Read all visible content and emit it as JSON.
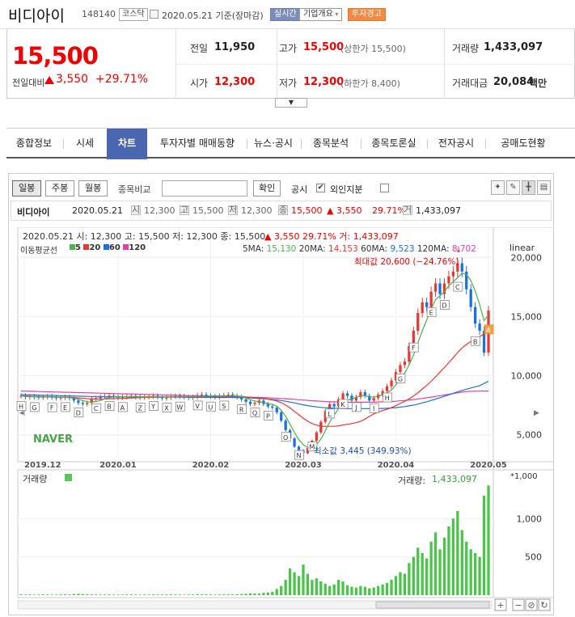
{
  "header": {
    "stock_name": "비디아이",
    "stock_code": "148140",
    "market": "코스닥",
    "date_text": "2020.05.21 기준(장마감)",
    "realtime": "실시간",
    "company_info": "기업개요",
    "alert": "투자경고"
  },
  "price": {
    "current": "15,500",
    "change_label": "전일대비",
    "change": "3,550",
    "change_pct": "+29.71%",
    "prev_close_label": "전일",
    "prev_close": "11,950",
    "high_label": "고가",
    "high": "15,500",
    "upper_limit": "(상한가 15,500)",
    "volume_label": "거래량",
    "volume": "1,433,097",
    "open_label": "시가",
    "open": "12,300",
    "low_label": "저가",
    "low": "12,300",
    "lower_limit": "(하한가 8,400)",
    "amount_label": "거래대금",
    "amount": "20,084",
    "amount_unit": "백만"
  },
  "collapse_icon": "chevron-down-icon",
  "tabs": [
    "종합정보",
    "시세",
    "차트",
    "투자자별 매매동향",
    "뉴스·공시",
    "종목분석",
    "종목토론실",
    "전자공시",
    "공매도현황"
  ],
  "active_tab": 2,
  "toolbar": {
    "periods": [
      "일봉",
      "주봉",
      "월봉"
    ],
    "compare_label": "종목비교",
    "compare_placeholder": "",
    "confirm": "확인",
    "disclosure": "공시",
    "disclosure_checked": "✔",
    "foreign": "외인지분"
  },
  "infobar": {
    "name": "비디아이",
    "date": "2020.05.21",
    "open_lbl": "시",
    "open": "12,300",
    "high_lbl": "고",
    "high": "15,500",
    "low_lbl": "저",
    "low": "12,300",
    "close_lbl": "종",
    "close": "15,500",
    "change": "▲ 3,550",
    "pct": "29.71%",
    "vol_lbl": "거",
    "volume": "1,433,097"
  },
  "overlay": {
    "ohlc_line": "2020.05.21 시: 12,300 고: 15,500 저: 12,300 종: 15,500",
    "chg": "▲  3,550  29.71%  거: 1,433,097",
    "ma_title": "이동평균선",
    "ma_periods": [
      "5",
      "20",
      "60",
      "120"
    ],
    "ma_colors": [
      "#4caf50",
      "#e53935",
      "#1e6fd9",
      "#e040a0"
    ],
    "ma5_lbl": "5MA:",
    "ma5": "15,130",
    "ma20_lbl": "20MA:",
    "ma20": "14,153",
    "ma60_lbl": "60MA:",
    "ma60": "9,523",
    "ma120_lbl": "120MA:",
    "ma120": "8,702",
    "linear": "linear",
    "max_text": "최대값 20,600 (−24.76%)",
    "min_text": "최소값 3,445 (349.93%)",
    "brand": "NAVER",
    "vol_title": "거래량",
    "vol_value_label": "거래량:",
    "vol_value": "1,433,097",
    "vol_scale": "*1,000"
  },
  "chart_data": {
    "type": "candlestick",
    "price_axis": {
      "ticks": [
        "5,000",
        "10,000",
        "15,000",
        "20,000"
      ],
      "range": [
        3000,
        22000
      ]
    },
    "volume_axis": {
      "ticks": [
        "500",
        "1,000"
      ],
      "range": [
        0,
        1500
      ],
      "unit": "*1,000"
    },
    "x_ticks": [
      "2019.12",
      "2020.01",
      "2020.02",
      "2020.03",
      "2020.04",
      "2020.05"
    ],
    "closes": [
      8300,
      8200,
      8250,
      8200,
      8150,
      8200,
      8250,
      8180,
      8100,
      8150,
      8200,
      8100,
      7900,
      7700,
      7600,
      7700,
      8000,
      8100,
      8200,
      8250,
      8300,
      8200,
      8150,
      8200,
      8250,
      8300,
      8200,
      8150,
      8200,
      8250,
      8300,
      8200,
      8100,
      8150,
      8250,
      8300,
      8250,
      8200,
      8150,
      8200,
      8350,
      8400,
      8300,
      8250,
      8200,
      8300,
      8350,
      8400,
      8300,
      8200,
      8000,
      7800,
      7600,
      7700,
      7900,
      7600,
      7400,
      7300,
      6900,
      6200,
      5400,
      4700,
      4000,
      3700,
      3445,
      3900,
      4500,
      5200,
      6100,
      7000,
      7600,
      7400,
      8000,
      8500,
      8300,
      7900,
      8200,
      8600,
      8300,
      7900,
      8100,
      8400,
      8700,
      9100,
      9600,
      10300,
      10900,
      11200,
      12500,
      13800,
      15300,
      16200,
      15800,
      17100,
      17800,
      16900,
      17800,
      18400,
      18800,
      19500,
      18800,
      17300,
      15800,
      14400,
      13800,
      11950,
      15500
    ],
    "volumes": [
      10,
      8,
      9,
      7,
      8,
      10,
      9,
      8,
      7,
      9,
      11,
      9,
      15,
      18,
      14,
      12,
      10,
      9,
      8,
      9,
      10,
      8,
      7,
      8,
      9,
      10,
      8,
      7,
      8,
      9,
      10,
      9,
      8,
      9,
      10,
      9,
      8,
      7,
      8,
      9,
      12,
      11,
      10,
      9,
      8,
      9,
      10,
      11,
      10,
      12,
      15,
      18,
      25,
      22,
      20,
      30,
      35,
      45,
      80,
      120,
      200,
      350,
      300,
      250,
      400,
      280,
      200,
      220,
      180,
      150,
      120,
      140,
      200,
      180,
      130,
      110,
      100,
      120,
      110,
      90,
      100,
      120,
      140,
      160,
      200,
      250,
      300,
      280,
      420,
      500,
      620,
      550,
      480,
      700,
      820,
      600,
      750,
      900,
      1000,
      1100,
      850,
      700,
      600,
      550,
      500,
      1300,
      1433
    ],
    "ma5": [
      8300,
      8240,
      8230,
      8220,
      8200,
      8200,
      8200,
      8190,
      8180,
      8170,
      8160,
      8140,
      8090,
      8000,
      7900,
      7800,
      7780,
      7820,
      7900,
      8050,
      8150,
      8210,
      8220,
      8220,
      8220,
      8230,
      8230,
      8220,
      8210,
      8220,
      8220,
      8220,
      8210,
      8200,
      8200,
      8210,
      8230,
      8240,
      8230,
      8220,
      8230,
      8260,
      8280,
      8300,
      8300,
      8290,
      8280,
      8300,
      8310,
      8290,
      8230,
      8110,
      7970,
      7860,
      7800,
      7720,
      7640,
      7580,
      7420,
      7080,
      6560,
      5900,
      5200,
      4600,
      4150,
      3950,
      3900,
      4160,
      4650,
      5340,
      6080,
      6660,
      7220,
      7700,
      7960,
      8020,
      8180,
      8300,
      8320,
      8200,
      8180,
      8260,
      8400,
      8560,
      8780,
      9220,
      9740,
      10220,
      10900,
      11740,
      12800,
      13800,
      14720,
      15640,
      16440,
      16760,
      17080,
      17600,
      17940,
      18280,
      18660,
      18560,
      18040,
      17160,
      16020,
      14650,
      15130
    ],
    "ma20": [
      8300,
      8280,
      8260,
      8250,
      8240,
      8230,
      8220,
      8210,
      8200,
      8190,
      8180,
      8170,
      8150,
      8120,
      8090,
      8060,
      8040,
      8030,
      8020,
      8030,
      8050,
      8060,
      8070,
      8080,
      8090,
      8110,
      8130,
      8150,
      8160,
      8170,
      8180,
      8190,
      8200,
      8210,
      8210,
      8210,
      8210,
      8210,
      8210,
      8210,
      8220,
      8230,
      8240,
      8250,
      8250,
      8250,
      8250,
      8260,
      8270,
      8260,
      8240,
      8210,
      8170,
      8140,
      8120,
      8070,
      8010,
      7950,
      7860,
      7720,
      7520,
      7270,
      6980,
      6700,
      6400,
      6160,
      5950,
      5820,
      5740,
      5710,
      5720,
      5720,
      5760,
      5830,
      5890,
      5950,
      6030,
      6150,
      6330,
      6560,
      6770,
      6920,
      7050,
      7170,
      7300,
      7470,
      7650,
      7830,
      8040,
      8280,
      8560,
      8880,
      9180,
      9530,
      9910,
      10300,
      10690,
      11100,
      11520,
      11950,
      12340,
      12640,
      12880,
      13100,
      13300,
      13530,
      14153
    ],
    "ma60": [
      8400,
      8390,
      8380,
      8370,
      8360,
      8350,
      8340,
      8330,
      8320,
      8310,
      8300,
      8290,
      8280,
      8270,
      8260,
      8250,
      8240,
      8230,
      8220,
      8220,
      8220,
      8220,
      8210,
      8210,
      8200,
      8200,
      8200,
      8200,
      8190,
      8190,
      8190,
      8190,
      8180,
      8180,
      8180,
      8180,
      8180,
      8180,
      8170,
      8170,
      8170,
      8170,
      8170,
      8170,
      8160,
      8160,
      8160,
      8160,
      8160,
      8150,
      8140,
      8130,
      8110,
      8090,
      8070,
      8050,
      8020,
      7990,
      7950,
      7900,
      7840,
      7770,
      7700,
      7620,
      7540,
      7470,
      7410,
      7360,
      7320,
      7290,
      7270,
      7250,
      7240,
      7230,
      7220,
      7220,
      7220,
      7220,
      7220,
      7210,
      7210,
      7220,
      7230,
      7250,
      7270,
      7300,
      7340,
      7390,
      7450,
      7520,
      7600,
      7700,
      7800,
      7910,
      8020,
      8140,
      8260,
      8380,
      8500,
      8630,
      8750,
      8860,
      8960,
      9060,
      9160,
      9340,
      9523
    ],
    "ma120": [
      8700,
      8690,
      8680,
      8670,
      8660,
      8650,
      8640,
      8630,
      8620,
      8610,
      8600,
      8590,
      8580,
      8570,
      8560,
      8550,
      8540,
      8530,
      8520,
      8510,
      8500,
      8490,
      8480,
      8470,
      8460,
      8450,
      8440,
      8430,
      8420,
      8410,
      8400,
      8390,
      8380,
      8370,
      8360,
      8350,
      8340,
      8330,
      8320,
      8310,
      8300,
      8290,
      8280,
      8270,
      8260,
      8250,
      8240,
      8230,
      8220,
      8210,
      8200,
      8190,
      8180,
      8170,
      8160,
      8150,
      8130,
      8110,
      8090,
      8070,
      8050,
      8030,
      8000,
      7970,
      7940,
      7910,
      7880,
      7860,
      7840,
      7820,
      7800,
      7790,
      7780,
      7770,
      7760,
      7760,
      7760,
      7760,
      7760,
      7760,
      7770,
      7780,
      7790,
      7800,
      7820,
      7840,
      7870,
      7900,
      7940,
      7980,
      8030,
      8080,
      8130,
      8190,
      8250,
      8310,
      8370,
      8430,
      8490,
      8550,
      8610,
      8660,
      8680,
      8690,
      8695,
      8700,
      8702
    ],
    "disclosure_markers": [
      "H",
      "G",
      "F",
      "E",
      "D",
      "C",
      "B",
      "A",
      "Z",
      "Y",
      "X",
      "W",
      "V",
      "U",
      "S",
      "R",
      "Q",
      "P",
      "O",
      "N",
      "M",
      "L",
      "K",
      "J",
      "I",
      "H",
      "G",
      "F",
      "E",
      "D",
      "C",
      "B",
      "A"
    ]
  }
}
